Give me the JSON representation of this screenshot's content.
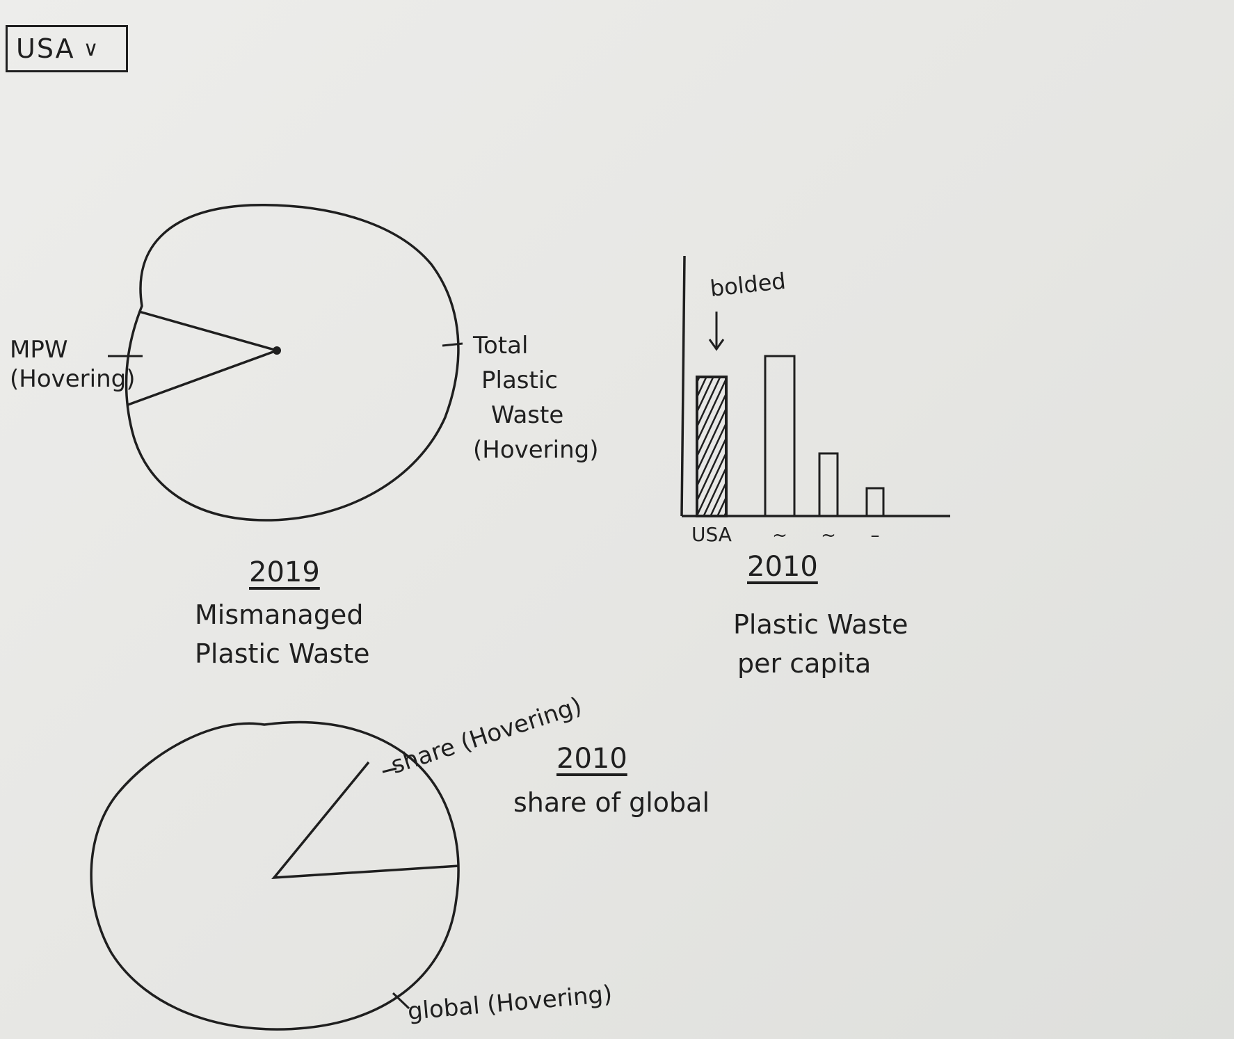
{
  "dropdown": {
    "selected": "USA",
    "chevron_icon": "chevron-down-icon"
  },
  "chart_data": [
    {
      "type": "pie",
      "year": "2019",
      "title_line1": "Mismanaged",
      "title_line2": "Plastic Waste",
      "slices": [
        {
          "label_line1": "MPW",
          "label_line2": "(Hovering)"
        },
        {
          "label_line1": "Total",
          "label_line2": "Plastic",
          "label_line3": "Waste",
          "label_line4": "(Hovering)"
        }
      ]
    },
    {
      "type": "bar",
      "year": "2010",
      "title_line1": "Plastic Waste",
      "title_line2": "per capita",
      "annotation": "bolded",
      "categories": [
        "USA",
        "~",
        "~",
        "–"
      ],
      "values": [
        100,
        115,
        45,
        20
      ],
      "highlighted": "USA"
    },
    {
      "type": "pie",
      "year": "2010",
      "title": "share of global",
      "slices": [
        {
          "label": "share (Hovering)"
        },
        {
          "label": "global (Hovering)"
        }
      ]
    }
  ]
}
